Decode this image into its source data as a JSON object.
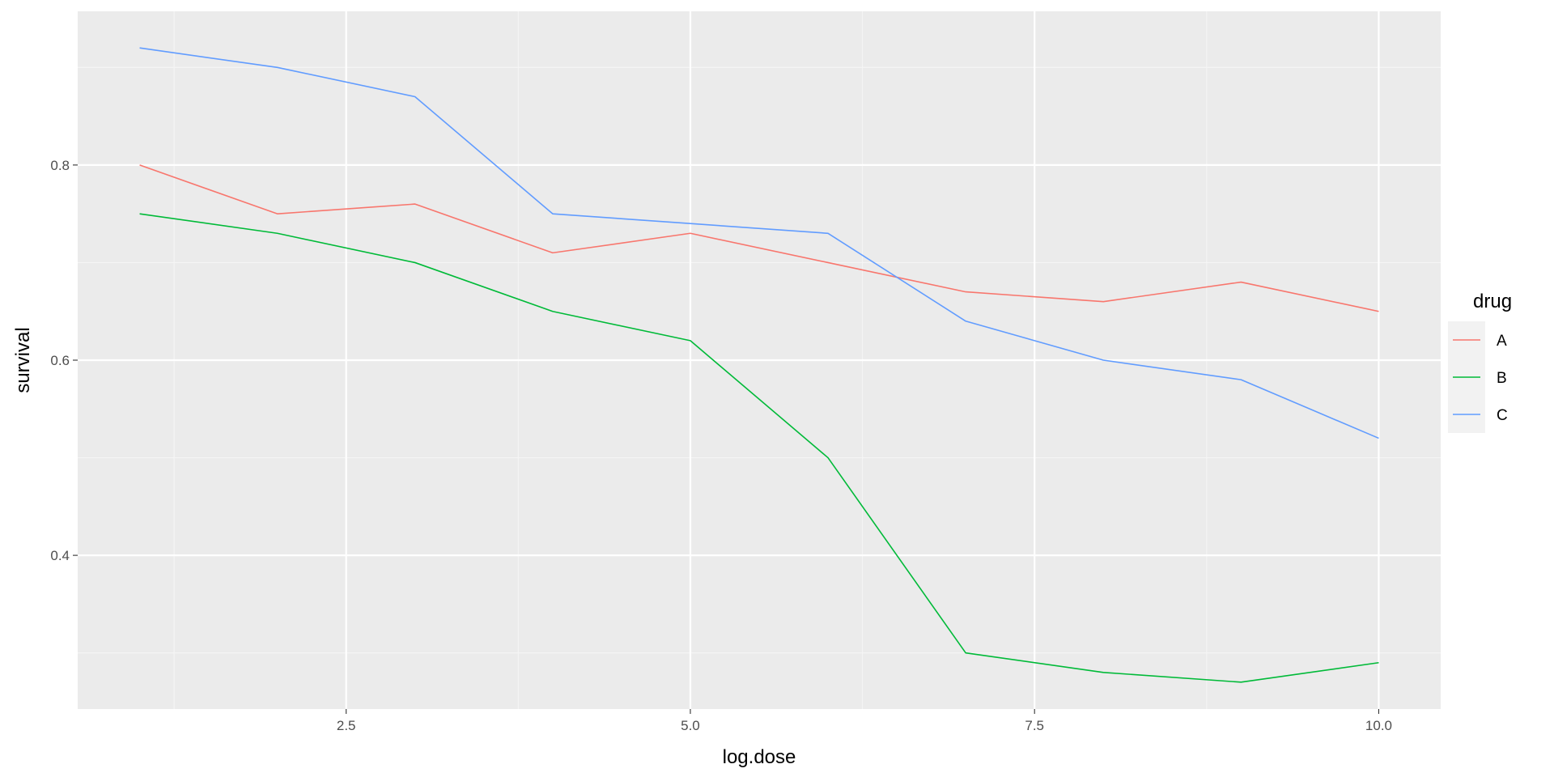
{
  "chart_data": {
    "type": "line",
    "xlabel": "log.dose",
    "ylabel": "survival",
    "x": [
      1,
      2,
      3,
      4,
      5,
      6,
      7,
      8,
      9,
      10
    ],
    "xlim": [
      0.55,
      10.45
    ],
    "ylim": [
      0.2425,
      0.9575
    ],
    "x_ticks": [
      2.5,
      5.0,
      7.5,
      10.0
    ],
    "x_tick_labels": [
      "2.5",
      "5.0",
      "7.5",
      "10.0"
    ],
    "x_minor_ticks": [
      1.25,
      3.75,
      6.25,
      8.75
    ],
    "y_ticks": [
      0.4,
      0.6,
      0.8
    ],
    "y_tick_labels": [
      "0.4",
      "0.6",
      "0.8"
    ],
    "y_minor_ticks": [
      0.3,
      0.5,
      0.7,
      0.9
    ],
    "grid": true,
    "legend": {
      "title": "drug",
      "placement": "right"
    },
    "series": [
      {
        "name": "A",
        "color": "#F8766D",
        "values": [
          0.8,
          0.75,
          0.76,
          0.71,
          0.73,
          0.7,
          0.67,
          0.66,
          0.68,
          0.65
        ]
      },
      {
        "name": "B",
        "color": "#00BA38",
        "values": [
          0.75,
          0.73,
          0.7,
          0.65,
          0.62,
          0.5,
          0.3,
          0.28,
          0.27,
          0.29
        ]
      },
      {
        "name": "C",
        "color": "#619CFF",
        "values": [
          0.92,
          0.9,
          0.87,
          0.75,
          0.74,
          0.73,
          0.64,
          0.6,
          0.58,
          0.52
        ]
      }
    ]
  }
}
